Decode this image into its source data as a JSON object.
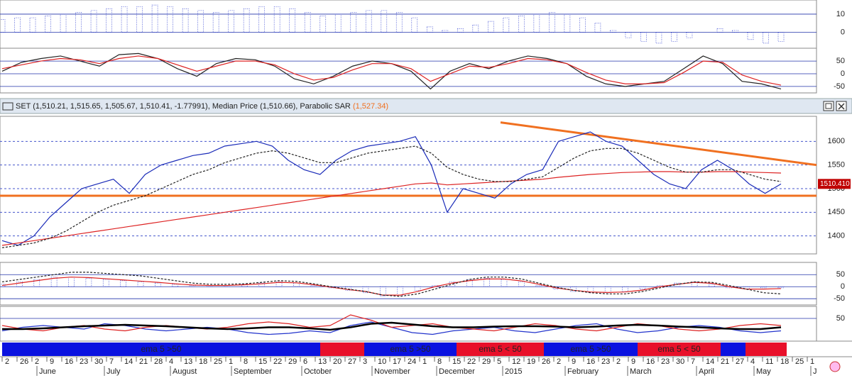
{
  "chart_data": [
    {
      "type": "bar",
      "ylim": [
        -8,
        17
      ],
      "yticks": [
        10,
        0
      ],
      "color": "#2233cc",
      "series": [
        {
          "type": "bar",
          "color": "#2233cc",
          "values": [
            7,
            8,
            8,
            9,
            10,
            11,
            12,
            13,
            14,
            14,
            15,
            14,
            13,
            12,
            11,
            12,
            13,
            14,
            14,
            13,
            11,
            9,
            10,
            11,
            12,
            12,
            11,
            8,
            3,
            1,
            2,
            4,
            6,
            8,
            9,
            10,
            11,
            10,
            8,
            5,
            1,
            -3,
            -5,
            -6,
            -5,
            -3,
            0,
            2,
            1,
            -4,
            -6,
            -5
          ]
        }
      ]
    },
    {
      "type": "line",
      "ylim": [
        -70,
        95
      ],
      "yticks": [
        50,
        0,
        -50
      ],
      "series": [
        {
          "type": "line",
          "color": "#222222",
          "values": [
            10,
            45,
            60,
            70,
            50,
            30,
            75,
            80,
            60,
            20,
            -10,
            40,
            60,
            55,
            30,
            -20,
            -40,
            -10,
            30,
            50,
            40,
            10,
            -60,
            10,
            40,
            20,
            50,
            70,
            60,
            40,
            -10,
            -40,
            -50,
            -40,
            -30,
            20,
            70,
            40,
            -30,
            -40,
            -60
          ]
        },
        {
          "type": "line",
          "color": "#dd2222",
          "values": [
            20,
            35,
            50,
            60,
            55,
            40,
            60,
            70,
            60,
            35,
            10,
            30,
            50,
            50,
            35,
            0,
            -25,
            -15,
            15,
            40,
            40,
            20,
            -30,
            0,
            30,
            25,
            40,
            60,
            55,
            40,
            5,
            -25,
            -40,
            -40,
            -35,
            5,
            50,
            45,
            -5,
            -30,
            -45
          ]
        }
      ]
    },
    {
      "type": "line",
      "title": "SET (1,510.21, 1,515.65, 1,505.67, 1,510.41, -1.77991), Median Price (1,510.66), Parabolic SAR",
      "sar_label": "(1,527.34)",
      "last_label": "1510.410",
      "ylim": [
        1365,
        1650
      ],
      "yticks": [
        1600,
        1550,
        1500,
        1450,
        1400
      ],
      "support": 1485,
      "trend": [
        1640,
        1550
      ],
      "series": [
        {
          "type": "line",
          "color": "#1a2bb8",
          "values": [
            1390,
            1380,
            1400,
            1440,
            1470,
            1500,
            1510,
            1520,
            1490,
            1530,
            1550,
            1560,
            1570,
            1575,
            1590,
            1595,
            1600,
            1590,
            1560,
            1540,
            1530,
            1560,
            1580,
            1590,
            1595,
            1600,
            1610,
            1550,
            1450,
            1500,
            1490,
            1480,
            1510,
            1530,
            1540,
            1600,
            1610,
            1620,
            1600,
            1590,
            1560,
            1530,
            1510,
            1500,
            1540,
            1560,
            1540,
            1510,
            1490,
            1510
          ]
        },
        {
          "type": "line",
          "color": "#dd2222",
          "values": [
            1380,
            1385,
            1390,
            1395,
            1400,
            1405,
            1410,
            1415,
            1420,
            1425,
            1430,
            1435,
            1440,
            1445,
            1450,
            1455,
            1460,
            1465,
            1470,
            1475,
            1480,
            1485,
            1490,
            1495,
            1500,
            1505,
            1510,
            1512,
            1508,
            1510,
            1512,
            1514,
            1516,
            1518,
            1520,
            1524,
            1527,
            1530,
            1532,
            1534,
            1535,
            1536,
            1536,
            1535,
            1535,
            1536,
            1536,
            1535,
            1534,
            1533
          ]
        },
        {
          "type": "line",
          "color": "#222222",
          "dash": true,
          "values": [
            1375,
            1380,
            1385,
            1395,
            1410,
            1430,
            1450,
            1465,
            1475,
            1485,
            1500,
            1515,
            1530,
            1540,
            1555,
            1565,
            1575,
            1580,
            1575,
            1565,
            1555,
            1555,
            1565,
            1575,
            1580,
            1585,
            1590,
            1575,
            1545,
            1530,
            1520,
            1515,
            1515,
            1520,
            1525,
            1545,
            1565,
            1580,
            1585,
            1585,
            1575,
            1560,
            1545,
            1535,
            1535,
            1540,
            1540,
            1530,
            1520,
            1515
          ]
        }
      ]
    },
    {
      "type": "bar",
      "ylim": [
        -70,
        95
      ],
      "yticks": [
        50,
        0,
        -50
      ],
      "series": [
        {
          "type": "bar",
          "color": "#2233cc",
          "values": [
            10,
            20,
            30,
            40,
            40,
            35,
            30,
            25,
            20,
            15,
            10,
            5,
            5,
            5,
            10,
            15,
            20,
            15,
            5,
            -5,
            -15,
            -25,
            -40,
            -35,
            -15,
            5,
            20,
            30,
            35,
            30,
            20,
            5,
            -10,
            -20,
            -25,
            -25,
            -20,
            -10,
            5,
            15,
            20,
            10,
            -5,
            -10,
            -5,
            -5
          ]
        },
        {
          "type": "line",
          "color": "#dd2222",
          "values": [
            5,
            15,
            25,
            35,
            40,
            38,
            33,
            28,
            23,
            18,
            12,
            7,
            5,
            5,
            8,
            12,
            18,
            16,
            8,
            -2,
            -12,
            -20,
            -35,
            -35,
            -20,
            0,
            15,
            25,
            32,
            32,
            24,
            10,
            -5,
            -15,
            -22,
            -24,
            -22,
            -14,
            0,
            10,
            18,
            14,
            0,
            -10,
            -10,
            -8
          ]
        },
        {
          "type": "line",
          "color": "#222222",
          "dash": true,
          "values": [
            20,
            30,
            40,
            50,
            60,
            60,
            55,
            50,
            45,
            35,
            25,
            15,
            10,
            10,
            12,
            18,
            25,
            22,
            12,
            0,
            -10,
            -20,
            -35,
            -40,
            -30,
            -10,
            10,
            30,
            40,
            40,
            32,
            15,
            -2,
            -15,
            -25,
            -30,
            -30,
            -20,
            -5,
            10,
            20,
            18,
            5,
            -10,
            -25,
            -30
          ]
        }
      ]
    },
    {
      "type": "line",
      "ylim": [
        -10,
        80
      ],
      "yticks": [
        50
      ],
      "series": [
        {
          "type": "line",
          "color": "#2233cc",
          "values": [
            15,
            25,
            30,
            25,
            20,
            35,
            30,
            20,
            15,
            20,
            25,
            20,
            10,
            5,
            8,
            15,
            10,
            30,
            40,
            25,
            10,
            5,
            15,
            20,
            25,
            15,
            10,
            20,
            30,
            35,
            20,
            10,
            15,
            25,
            30,
            25,
            15,
            10,
            15
          ]
        },
        {
          "type": "line",
          "color": "#dd2222",
          "values": [
            30,
            20,
            15,
            25,
            30,
            20,
            15,
            25,
            30,
            25,
            20,
            25,
            35,
            40,
            35,
            25,
            30,
            60,
            45,
            25,
            30,
            35,
            25,
            20,
            15,
            25,
            35,
            30,
            20,
            15,
            25,
            35,
            30,
            20,
            15,
            20,
            30,
            35,
            30
          ]
        },
        {
          "type": "line",
          "color": "#000000",
          "width": 2.5,
          "values": [
            20,
            20,
            22,
            25,
            28,
            30,
            32,
            30,
            28,
            25,
            22,
            20,
            22,
            25,
            25,
            22,
            18,
            25,
            35,
            38,
            33,
            28,
            25,
            25,
            27,
            28,
            28,
            27,
            25,
            27,
            30,
            32,
            30,
            27,
            25,
            22,
            20,
            20,
            25
          ]
        }
      ]
    }
  ],
  "bands": [
    {
      "label": "ema 5 >50",
      "color": "#0a12e0"
    },
    {
      "color": "#e8102a"
    },
    {
      "label": "ema 5 >50",
      "color": "#0a12e0"
    },
    {
      "label": "ema 5 < 50",
      "color": "#e8102a"
    },
    {
      "label": "ema 5 >50",
      "color": "#0a12e0"
    },
    {
      "label": "ema 5 < 50",
      "color": "#e8102a"
    },
    {
      "color": "#0a12e0"
    },
    {
      "color": "#e8102a"
    }
  ],
  "x_axis": {
    "days": [
      "2",
      "26",
      "2",
      "9",
      "16",
      "23",
      "30",
      "7",
      "14",
      "21",
      "28",
      "4",
      "13",
      "18",
      "25",
      "1",
      "8",
      "15",
      "22",
      "29",
      "6",
      "13",
      "20",
      "27",
      "3",
      "10",
      "17",
      "24",
      "1",
      "8",
      "15",
      "22",
      "29",
      "5",
      "12",
      "19",
      "26",
      "2",
      "9",
      "16",
      "23",
      "2",
      "9",
      "16",
      "23",
      "30",
      "7",
      "14",
      "21",
      "27",
      "4",
      "11",
      "18",
      "25",
      "1"
    ],
    "months": [
      "June",
      "July",
      "August",
      "September",
      "October",
      "November",
      "December",
      "2015",
      "February",
      "March",
      "April",
      "May",
      "J"
    ]
  }
}
